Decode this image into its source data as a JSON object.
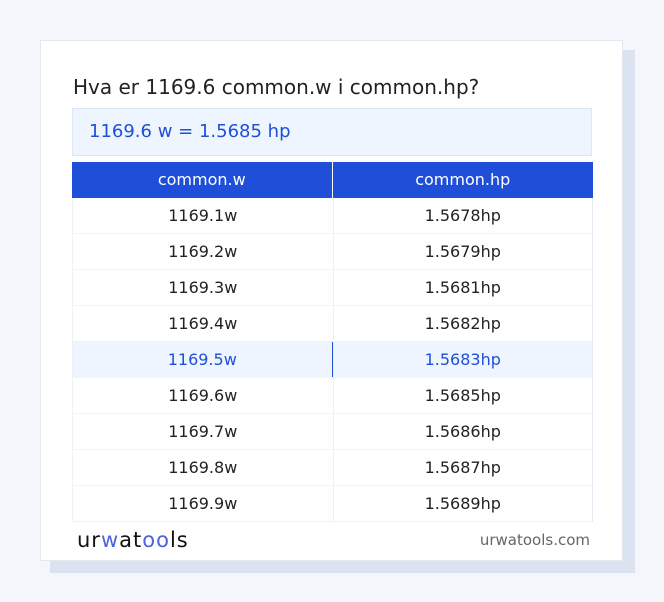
{
  "title": "Hva er 1169.6 common.w i common.hp?",
  "result": "1169.6 w = 1.5685 hp",
  "table": {
    "headers": [
      "common.w",
      "common.hp"
    ],
    "rows": [
      [
        "1169.1w",
        "1.5678hp"
      ],
      [
        "1169.2w",
        "1.5679hp"
      ],
      [
        "1169.3w",
        "1.5681hp"
      ],
      [
        "1169.4w",
        "1.5682hp"
      ],
      [
        "1169.5w",
        "1.5683hp"
      ],
      [
        "1169.6w",
        "1.5685hp"
      ],
      [
        "1169.7w",
        "1.5686hp"
      ],
      [
        "1169.8w",
        "1.5687hp"
      ],
      [
        "1169.9w",
        "1.5689hp"
      ]
    ],
    "highlighted_row": 4
  },
  "footer": {
    "logo": "urwatools",
    "site": "urwatools.com"
  },
  "colors": {
    "accent": "#1f4fd8",
    "highlight": "#eef5fe"
  }
}
